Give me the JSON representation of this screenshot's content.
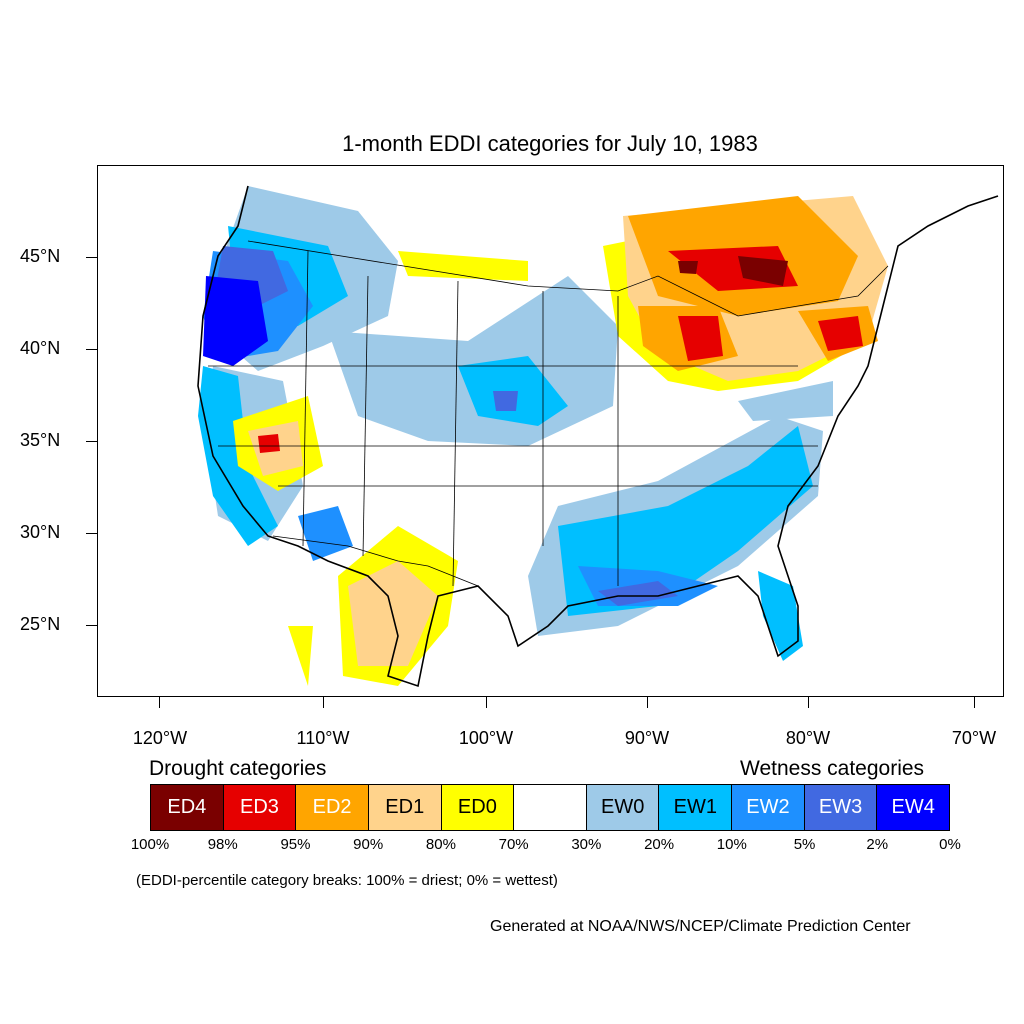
{
  "title": "1-month EDDI categories for July 10, 1983",
  "axes": {
    "lat_labels": [
      "45°N",
      "40°N",
      "35°N",
      "30°N",
      "25°N"
    ],
    "lon_labels": [
      "120°W",
      "110°W",
      "100°W",
      "90°W",
      "80°W",
      "70°W"
    ]
  },
  "legend": {
    "drought_heading": "Drought categories",
    "wetness_heading": "Wetness categories",
    "categories": [
      {
        "label": "ED4",
        "color": "#7a0000",
        "text_color": "#ffffff"
      },
      {
        "label": "ED3",
        "color": "#e60000",
        "text_color": "#ffffff"
      },
      {
        "label": "ED2",
        "color": "#ffa500",
        "text_color": "#ffffff"
      },
      {
        "label": "ED1",
        "color": "#ffd38c",
        "text_color": "#000000"
      },
      {
        "label": "ED0",
        "color": "#ffff00",
        "text_color": "#000000"
      },
      {
        "label": "",
        "color": "#ffffff",
        "text_color": "#000000"
      },
      {
        "label": "EW0",
        "color": "#9ecae8",
        "text_color": "#000000"
      },
      {
        "label": "EW1",
        "color": "#00bfff",
        "text_color": "#000000"
      },
      {
        "label": "EW2",
        "color": "#1e90ff",
        "text_color": "#ffffff"
      },
      {
        "label": "EW3",
        "color": "#4169e1",
        "text_color": "#ffffff"
      },
      {
        "label": "EW4",
        "color": "#0000ff",
        "text_color": "#ffffff"
      }
    ],
    "breaks": [
      "100%",
      "98%",
      "95%",
      "90%",
      "80%",
      "70%",
      "30%",
      "20%",
      "10%",
      "5%",
      "2%",
      "0%"
    ]
  },
  "note": "(EDDI-percentile category breaks: 100% = driest; 0% = wettest)",
  "credit": "Generated at NOAA/NWS/NCEP/Climate Prediction Center"
}
